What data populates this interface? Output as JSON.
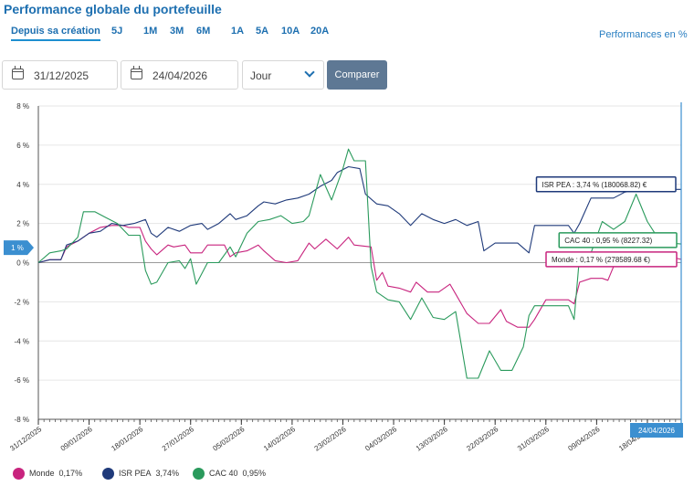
{
  "title": "Performance globale du portefeuille",
  "periods": [
    "Depuis sa création",
    "5J",
    "1M",
    "3M",
    "6M",
    "1A",
    "5A",
    "10A",
    "20A"
  ],
  "active_period": "Depuis sa création",
  "performance_mode_label": "Performances en %",
  "start_date": "31/12/2025",
  "end_date": "24/04/2026",
  "granularity": "Jour",
  "compare_label": "Comparer",
  "colors": {
    "monde": "#c8247e",
    "isr": "#1f3a7a",
    "cac": "#2a9a5c",
    "cursor": "#3b8fd0",
    "accent": "#1d6fb0"
  },
  "chart_data": {
    "type": "line",
    "title": "",
    "xlabel": "",
    "ylabel": "",
    "x_range": [
      "2025-12-31",
      "2026-04-24"
    ],
    "ylim": [
      -8,
      8
    ],
    "y_ticks": [
      8,
      6,
      4,
      2,
      0,
      -2,
      -4,
      -6,
      -8
    ],
    "y_tick_labels": [
      "8 %",
      "6 %",
      "4 %",
      "2 %",
      "0 %",
      "-2 %",
      "-4 %",
      "-6 %",
      "-8 %"
    ],
    "x_tick_labels": [
      "31/12/2025",
      "09/01/2026",
      "18/01/2026",
      "27/01/2026",
      "05/02/2026",
      "14/02/2026",
      "23/02/2026",
      "04/03/2026",
      "13/03/2026",
      "22/03/2026",
      "31/03/2026",
      "09/04/2026",
      "18/04/2026"
    ],
    "grid": "horizontal",
    "cursor": {
      "date": "24/04/2026",
      "y_label": "1 %"
    },
    "series": [
      {
        "name": "Monde",
        "legend_value": "0,17%",
        "color": "#c8247e",
        "tooltip": "Monde : 0,17 % (278589.68 €)",
        "points": [
          [
            "2025-12-31",
            0
          ],
          [
            "2026-01-02",
            0.15
          ],
          [
            "2026-01-04",
            0.15
          ],
          [
            "2026-01-05",
            0.8
          ],
          [
            "2026-01-07",
            1.1
          ],
          [
            "2026-01-09",
            1.5
          ],
          [
            "2026-01-11",
            1.8
          ],
          [
            "2026-01-13",
            1.9
          ],
          [
            "2026-01-15",
            1.9
          ],
          [
            "2026-01-16",
            1.8
          ],
          [
            "2026-01-18",
            1.8
          ],
          [
            "2026-01-19",
            1.1
          ],
          [
            "2026-01-20",
            0.7
          ],
          [
            "2026-01-21",
            0.4
          ],
          [
            "2026-01-23",
            0.9
          ],
          [
            "2026-01-24",
            0.8
          ],
          [
            "2026-01-26",
            0.9
          ],
          [
            "2026-01-27",
            0.5
          ],
          [
            "2026-01-29",
            0.5
          ],
          [
            "2026-01-30",
            0.9
          ],
          [
            "2026-01-31",
            0.9
          ],
          [
            "2026-02-02",
            0.9
          ],
          [
            "2026-02-03",
            0.3
          ],
          [
            "2026-02-04",
            0.5
          ],
          [
            "2026-02-06",
            0.6
          ],
          [
            "2026-02-08",
            0.9
          ],
          [
            "2026-02-09",
            0.6
          ],
          [
            "2026-02-11",
            0.1
          ],
          [
            "2026-02-13",
            0
          ],
          [
            "2026-02-15",
            0.1
          ],
          [
            "2026-02-17",
            1
          ],
          [
            "2026-02-18",
            0.7
          ],
          [
            "2026-02-20",
            1.2
          ],
          [
            "2026-02-22",
            0.7
          ],
          [
            "2026-02-24",
            1.3
          ],
          [
            "2026-02-25",
            0.9
          ],
          [
            "2026-02-28",
            0.8
          ],
          [
            "2026-03-01",
            -0.9
          ],
          [
            "2026-03-02",
            -0.5
          ],
          [
            "2026-03-03",
            -1.2
          ],
          [
            "2026-03-05",
            -1.3
          ],
          [
            "2026-03-07",
            -1.5
          ],
          [
            "2026-03-08",
            -1
          ],
          [
            "2026-03-10",
            -1.5
          ],
          [
            "2026-03-12",
            -1.5
          ],
          [
            "2026-03-14",
            -1.1
          ],
          [
            "2026-03-15",
            -1.6
          ],
          [
            "2026-03-17",
            -2.6
          ],
          [
            "2026-03-19",
            -3.1
          ],
          [
            "2026-03-21",
            -3.1
          ],
          [
            "2026-03-23",
            -2.4
          ],
          [
            "2026-03-24",
            -3
          ],
          [
            "2026-03-26",
            -3.3
          ],
          [
            "2026-03-28",
            -3.3
          ],
          [
            "2026-03-29",
            -2.9
          ],
          [
            "2026-03-31",
            -1.9
          ],
          [
            "2026-04-02",
            -1.9
          ],
          [
            "2026-04-04",
            -1.9
          ],
          [
            "2026-04-05",
            -2.1
          ],
          [
            "2026-04-06",
            -1
          ],
          [
            "2026-04-08",
            -0.8
          ],
          [
            "2026-04-10",
            -0.8
          ],
          [
            "2026-04-11",
            -0.9
          ],
          [
            "2026-04-12",
            -0.2
          ],
          [
            "2026-04-14",
            0.4
          ],
          [
            "2026-04-16",
            0.2
          ],
          [
            "2026-04-18",
            0.5
          ],
          [
            "2026-04-20",
            0.4
          ],
          [
            "2026-04-22",
            0.3
          ],
          [
            "2026-04-24",
            0.17
          ]
        ]
      },
      {
        "name": "ISR PEA",
        "legend_value": "3,74%",
        "color": "#1f3a7a",
        "tooltip": "ISR PEA : 3,74 % (180068.82) €",
        "points": [
          [
            "2025-12-31",
            0
          ],
          [
            "2026-01-02",
            0.15
          ],
          [
            "2026-01-04",
            0.15
          ],
          [
            "2026-01-05",
            0.9
          ],
          [
            "2026-01-07",
            1.1
          ],
          [
            "2026-01-09",
            1.5
          ],
          [
            "2026-01-11",
            1.6
          ],
          [
            "2026-01-13",
            2
          ],
          [
            "2026-01-15",
            1.9
          ],
          [
            "2026-01-17",
            2
          ],
          [
            "2026-01-19",
            2.2
          ],
          [
            "2026-01-20",
            1.5
          ],
          [
            "2026-01-21",
            1.3
          ],
          [
            "2026-01-23",
            1.8
          ],
          [
            "2026-01-25",
            1.6
          ],
          [
            "2026-01-27",
            1.9
          ],
          [
            "2026-01-29",
            2
          ],
          [
            "2026-01-30",
            1.7
          ],
          [
            "2026-02-01",
            2
          ],
          [
            "2026-02-03",
            2.5
          ],
          [
            "2026-02-04",
            2.2
          ],
          [
            "2026-02-06",
            2.4
          ],
          [
            "2026-02-08",
            2.9
          ],
          [
            "2026-02-09",
            3.1
          ],
          [
            "2026-02-11",
            3
          ],
          [
            "2026-02-13",
            3.2
          ],
          [
            "2026-02-15",
            3.3
          ],
          [
            "2026-02-17",
            3.5
          ],
          [
            "2026-02-19",
            3.9
          ],
          [
            "2026-02-21",
            4.2
          ],
          [
            "2026-02-22",
            4.6
          ],
          [
            "2026-02-24",
            4.9
          ],
          [
            "2026-02-26",
            4.8
          ],
          [
            "2026-02-27",
            3.5
          ],
          [
            "2026-03-01",
            3
          ],
          [
            "2026-03-03",
            2.9
          ],
          [
            "2026-03-05",
            2.5
          ],
          [
            "2026-03-07",
            1.9
          ],
          [
            "2026-03-09",
            2.5
          ],
          [
            "2026-03-11",
            2.2
          ],
          [
            "2026-03-13",
            2
          ],
          [
            "2026-03-15",
            2.2
          ],
          [
            "2026-03-17",
            1.9
          ],
          [
            "2026-03-19",
            2.1
          ],
          [
            "2026-03-20",
            0.6
          ],
          [
            "2026-03-22",
            1
          ],
          [
            "2026-03-24",
            1
          ],
          [
            "2026-03-26",
            1
          ],
          [
            "2026-03-28",
            0.5
          ],
          [
            "2026-03-29",
            1.9
          ],
          [
            "2026-03-31",
            1.9
          ],
          [
            "2026-04-02",
            1.9
          ],
          [
            "2026-04-04",
            1.9
          ],
          [
            "2026-04-05",
            1.5
          ],
          [
            "2026-04-06",
            2
          ],
          [
            "2026-04-08",
            3.3
          ],
          [
            "2026-04-10",
            3.3
          ],
          [
            "2026-04-12",
            3.3
          ],
          [
            "2026-04-14",
            3.6
          ],
          [
            "2026-04-16",
            3.7
          ],
          [
            "2026-04-18",
            3.74
          ],
          [
            "2026-04-20",
            3.74
          ],
          [
            "2026-04-22",
            3.74
          ],
          [
            "2026-04-24",
            3.74
          ]
        ]
      },
      {
        "name": "CAC 40",
        "legend_value": "0,95%",
        "color": "#2a9a5c",
        "tooltip": "CAC 40 : 0,95 % (8227.32)",
        "points": [
          [
            "2025-12-31",
            0
          ],
          [
            "2026-01-02",
            0.5
          ],
          [
            "2026-01-04",
            0.6
          ],
          [
            "2026-01-05",
            0.7
          ],
          [
            "2026-01-07",
            1.3
          ],
          [
            "2026-01-08",
            2.6
          ],
          [
            "2026-01-10",
            2.6
          ],
          [
            "2026-01-12",
            2.3
          ],
          [
            "2026-01-14",
            2
          ],
          [
            "2026-01-16",
            1.4
          ],
          [
            "2026-01-18",
            1.4
          ],
          [
            "2026-01-19",
            -0.4
          ],
          [
            "2026-01-20",
            -1.1
          ],
          [
            "2026-01-21",
            -1
          ],
          [
            "2026-01-23",
            0
          ],
          [
            "2026-01-25",
            0.1
          ],
          [
            "2026-01-26",
            -0.3
          ],
          [
            "2026-01-27",
            0.2
          ],
          [
            "2026-01-28",
            -1.1
          ],
          [
            "2026-01-30",
            0
          ],
          [
            "2026-02-01",
            0
          ],
          [
            "2026-02-03",
            0.8
          ],
          [
            "2026-02-04",
            0.3
          ],
          [
            "2026-02-06",
            1.5
          ],
          [
            "2026-02-08",
            2.1
          ],
          [
            "2026-02-10",
            2.2
          ],
          [
            "2026-02-12",
            2.4
          ],
          [
            "2026-02-14",
            2
          ],
          [
            "2026-02-16",
            2.1
          ],
          [
            "2026-02-17",
            2.4
          ],
          [
            "2026-02-19",
            4.5
          ],
          [
            "2026-02-21",
            3.2
          ],
          [
            "2026-02-23",
            4.8
          ],
          [
            "2026-02-24",
            5.8
          ],
          [
            "2026-02-25",
            5.2
          ],
          [
            "2026-02-27",
            5.2
          ],
          [
            "2026-02-28",
            -0.2
          ],
          [
            "2026-03-01",
            -1.5
          ],
          [
            "2026-03-03",
            -1.9
          ],
          [
            "2026-03-05",
            -2
          ],
          [
            "2026-03-07",
            -2.9
          ],
          [
            "2026-03-09",
            -1.8
          ],
          [
            "2026-03-11",
            -2.8
          ],
          [
            "2026-03-13",
            -2.9
          ],
          [
            "2026-03-15",
            -2.5
          ],
          [
            "2026-03-17",
            -5.9
          ],
          [
            "2026-03-19",
            -5.9
          ],
          [
            "2026-03-21",
            -4.5
          ],
          [
            "2026-03-23",
            -5.5
          ],
          [
            "2026-03-25",
            -5.5
          ],
          [
            "2026-03-27",
            -4.3
          ],
          [
            "2026-03-28",
            -2.7
          ],
          [
            "2026-03-29",
            -2.2
          ],
          [
            "2026-03-31",
            -2.2
          ],
          [
            "2026-04-02",
            -2.2
          ],
          [
            "2026-04-04",
            -2.2
          ],
          [
            "2026-04-05",
            -2.9
          ],
          [
            "2026-04-06",
            0.4
          ],
          [
            "2026-04-08",
            0.5
          ],
          [
            "2026-04-10",
            2.1
          ],
          [
            "2026-04-12",
            1.7
          ],
          [
            "2026-04-14",
            2.1
          ],
          [
            "2026-04-16",
            3.5
          ],
          [
            "2026-04-18",
            2.1
          ],
          [
            "2026-04-20",
            1.2
          ],
          [
            "2026-04-22",
            1
          ],
          [
            "2026-04-24",
            0.95
          ]
        ]
      }
    ]
  }
}
